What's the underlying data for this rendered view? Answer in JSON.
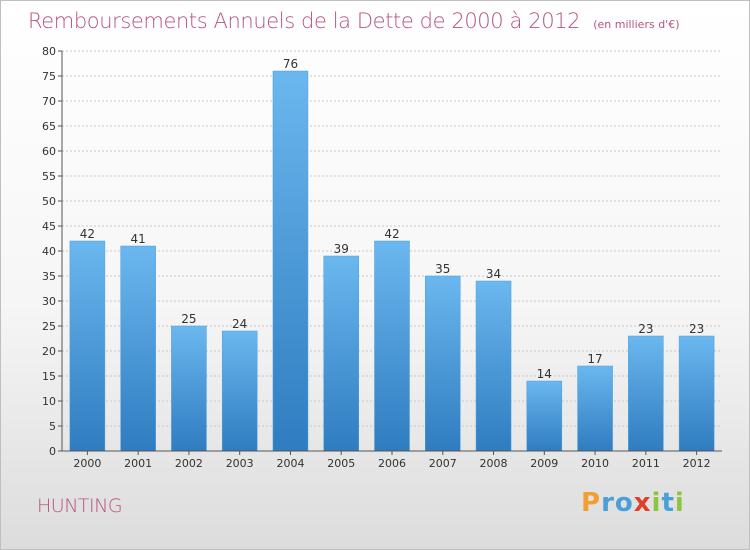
{
  "title": "Remboursements Annuels de la Dette de 2000 à 2012",
  "subtitle": "(en milliers d'€)",
  "commune": "HUNTING",
  "logo": {
    "letters": [
      "P",
      "r",
      "o",
      "x",
      "i",
      "t",
      "i"
    ],
    "colors": [
      "#f0a030",
      "#4a9fd8",
      "#4a9fd8",
      "#e0402a",
      "#8cc63f",
      "#4a9fd8",
      "#8cc63f"
    ]
  },
  "colors": {
    "bar": "#4a9fdf",
    "bar_light": "#6bb7ef",
    "bar_dark": "#2f7cc0",
    "title": "#b5547f",
    "grid": "#c8c8c8"
  },
  "chart_data": {
    "type": "bar",
    "title": "Remboursements Annuels de la Dette de 2000 à 2012",
    "subtitle": "(en milliers d'€)",
    "xlabel": "",
    "ylabel": "",
    "categories": [
      "2000",
      "2001",
      "2002",
      "2003",
      "2004",
      "2005",
      "2006",
      "2007",
      "2008",
      "2009",
      "2010",
      "2011",
      "2012"
    ],
    "values": [
      42,
      41,
      25,
      24,
      76,
      39,
      42,
      35,
      34,
      14,
      17,
      23,
      23
    ],
    "ylim": [
      0,
      80
    ],
    "yticks": [
      0,
      5,
      10,
      15,
      20,
      25,
      30,
      35,
      40,
      45,
      50,
      55,
      60,
      65,
      70,
      75,
      80
    ],
    "grid": true,
    "data_labels": true
  }
}
